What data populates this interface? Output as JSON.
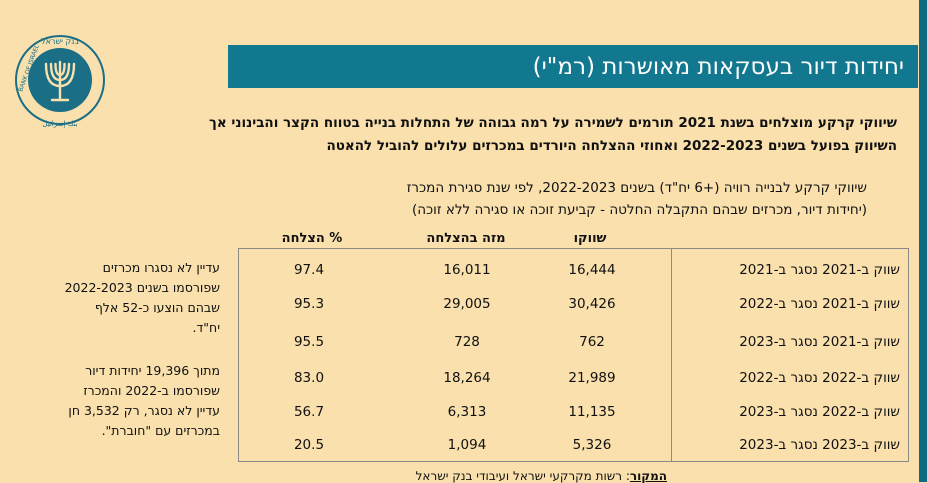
{
  "title": "יחידות דיור בעסקאות מאושרות (רמ\"י)",
  "logo": {
    "text_top": "בנק ישראל",
    "text_left": "BANK OF ISRAEL",
    "text_bottom": "بنك إسرائيل"
  },
  "headline": {
    "line1": "שיווקי קרקע מוצלחים בשנת 2021 תורמים לשמירה על רמה גבוהה של התחלות בנייה בטווח הקצר והבינוני אך",
    "line2": "השיווק בפועל בשנים 2022-2023 ואחוזי ההצלחה היורדים במכרזים עלולים להוביל להאטה"
  },
  "subtitle": {
    "line1": "שיווקי קרקע לבנייה רוויה (+6 יח\"ד) בשנים 2022-2023, לפי שנת סגירת המכרז",
    "line2": "(יחידות דיור, מכרזים שבהם התקבלה החלטה - קביעת זוכה או סגירה ללא זוכה)"
  },
  "table": {
    "headers": {
      "marketed": "שווקו",
      "won": "מזה בהצלחה",
      "pct": "% הצלחה"
    },
    "rows": [
      {
        "label": "שווק ב-2021 נסגר ב-2021",
        "marketed": "16,444",
        "won": "16,011",
        "pct": "97.4"
      },
      {
        "label": "שווק ב-2021 נסגר ב-2022",
        "marketed": "30,426",
        "won": "29,005",
        "pct": "95.3"
      },
      {
        "label": "שווק ב-2021 נסגר ב-2023",
        "marketed": "762",
        "won": "728",
        "pct": "95.5"
      },
      {
        "label": "שווק ב-2022 נסגר ב-2022",
        "marketed": "21,989",
        "won": "18,264",
        "pct": "83.0"
      },
      {
        "label": "שווק ב-2022 נסגר ב-2023",
        "marketed": "11,135",
        "won": "6,313",
        "pct": "56.7"
      },
      {
        "label": "שווק ב-2023 נסגר ב-2023",
        "marketed": "5,326",
        "won": "1,094",
        "pct": "20.5"
      }
    ]
  },
  "notes": {
    "note1": [
      "עדיין לא נסגרו מכרזים",
      "שפורסמו בשנים 2022-2023",
      "שבהם הוצעו כ-52 אלף",
      "יח\"ד."
    ],
    "note2": [
      "מתוך 19,396 יחידות דיור",
      "שפורסמו ב-2022 והמכרז",
      "עדיין לא נסגר, רק 3,532 חן",
      "במכרזים עם \"חוברת\"."
    ]
  },
  "footer": {
    "label": "המקור",
    "text": ": רשות מקרקעי ישראל ועיבודי בנק ישראל"
  },
  "colors": {
    "background": "#f9e0ad",
    "title_bar": "#12788f",
    "logo": "#1a6f86"
  }
}
